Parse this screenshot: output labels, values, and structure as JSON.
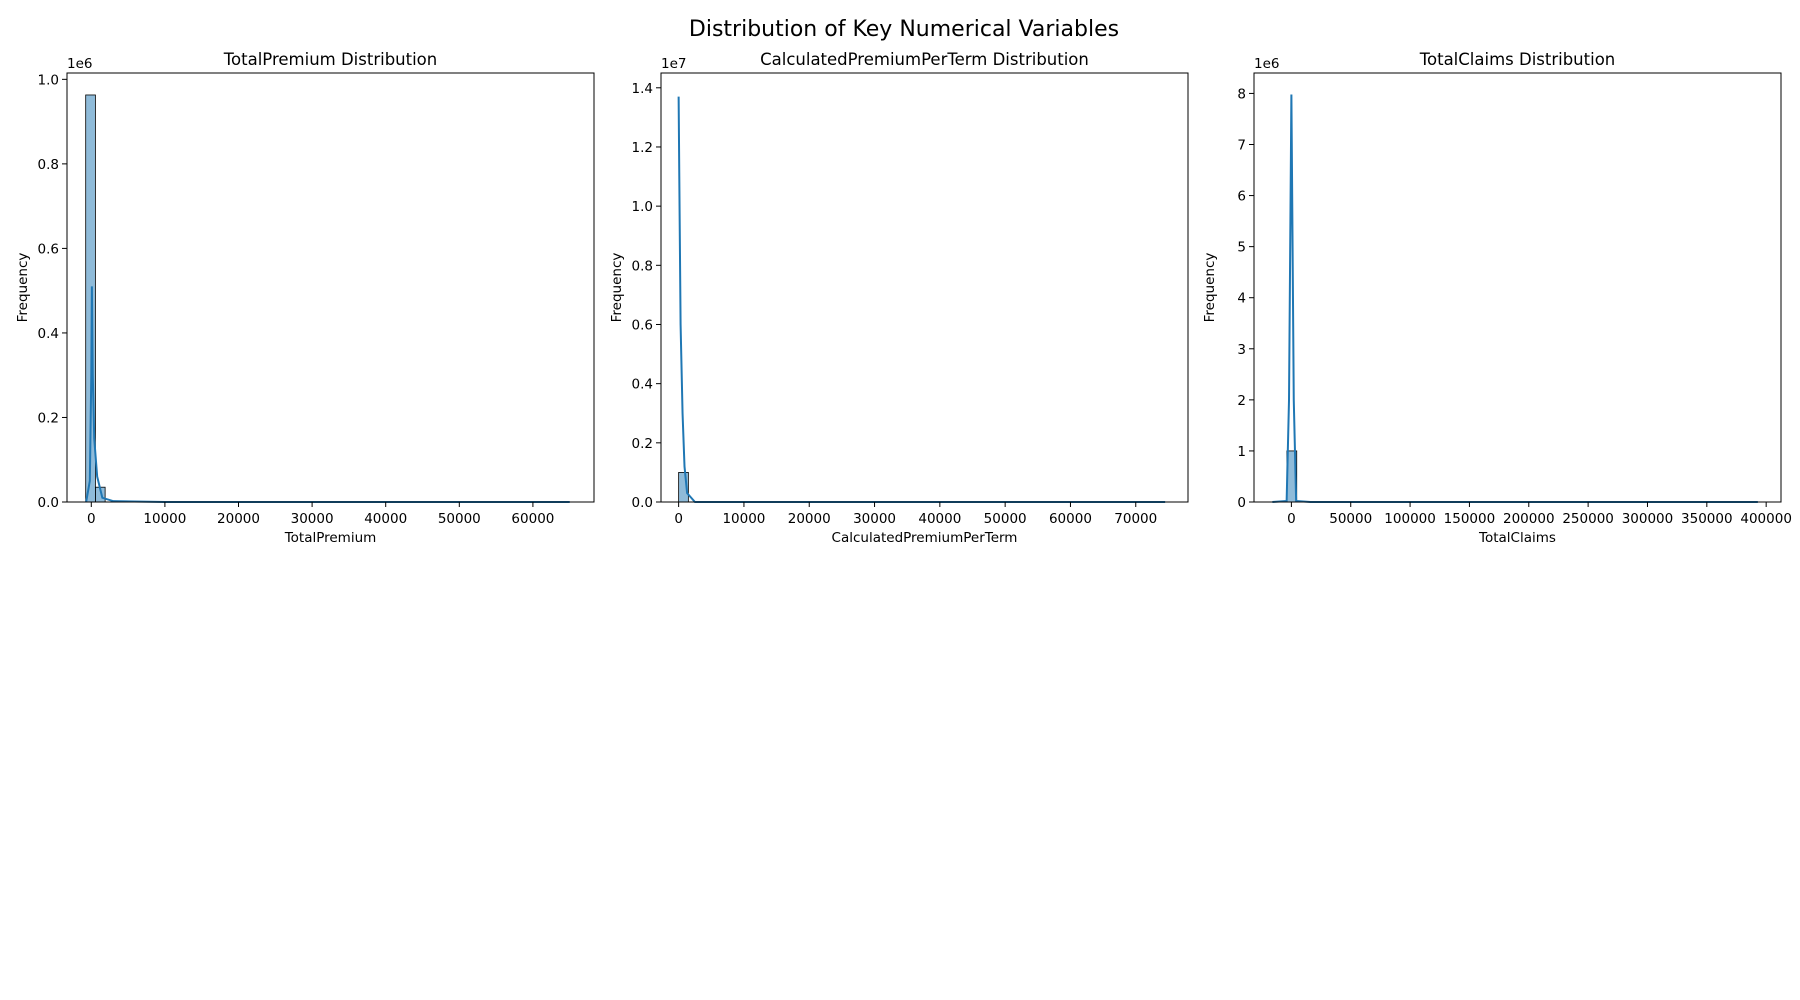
{
  "figure": {
    "title": "Distribution of Key Numerical Variables"
  },
  "colors": {
    "bar_fill": "#1f77b4",
    "bar_fill_opacity": 0.5,
    "bar_edge": "#000000",
    "kde_line": "#1f77b4",
    "axis": "#000000"
  },
  "chart_data": [
    {
      "type": "bar",
      "title": "TotalPremium Distribution",
      "xlabel": "TotalPremium",
      "ylabel": "Frequency",
      "offset_text": "1e6",
      "xlim": [
        -3300,
        68300
      ],
      "ylim": [
        0,
        1.015
      ],
      "xticks": [
        0,
        10000,
        20000,
        30000,
        40000,
        50000,
        60000
      ],
      "xtick_labels": [
        "0",
        "10000",
        "20000",
        "30000",
        "40000",
        "50000",
        "60000"
      ],
      "yticks": [
        0,
        0.2,
        0.4,
        0.6,
        0.8,
        1.0
      ],
      "ytick_labels": [
        "0.0",
        "0.2",
        "0.4",
        "0.6",
        "0.8",
        "1.0"
      ],
      "bins": [
        {
          "x0": -760,
          "x1": 560,
          "value": 0.963
        },
        {
          "x0": 560,
          "x1": 1880,
          "value": 0.035
        }
      ],
      "kde": [
        [
          -700,
          0.0
        ],
        [
          -200,
          0.05
        ],
        [
          0,
          0.3
        ],
        [
          80,
          0.51
        ],
        [
          200,
          0.3
        ],
        [
          400,
          0.15
        ],
        [
          800,
          0.06
        ],
        [
          1500,
          0.01
        ],
        [
          3000,
          0.002
        ],
        [
          10000,
          0.0
        ],
        [
          65000,
          0.0
        ]
      ]
    },
    {
      "type": "bar",
      "title": "CalculatedPremiumPerTerm Distribution",
      "xlabel": "CalculatedPremiumPerTerm",
      "ylabel": "Frequency",
      "offset_text": "1e7",
      "xlim": [
        -2700,
        78000
      ],
      "ylim": [
        0,
        1.45
      ],
      "xticks": [
        0,
        10000,
        20000,
        30000,
        40000,
        50000,
        60000,
        70000
      ],
      "xtick_labels": [
        "0",
        "10000",
        "20000",
        "30000",
        "40000",
        "50000",
        "60000",
        "70000"
      ],
      "yticks": [
        0,
        0.2,
        0.4,
        0.6,
        0.8,
        1.0,
        1.2,
        1.4
      ],
      "ytick_labels": [
        "0.0",
        "0.2",
        "0.4",
        "0.6",
        "0.8",
        "1.0",
        "1.2",
        "1.4"
      ],
      "bins": [
        {
          "x0": 0,
          "x1": 1490,
          "value": 0.1
        }
      ],
      "kde": [
        [
          0,
          1.37
        ],
        [
          100,
          1.1
        ],
        [
          300,
          0.6
        ],
        [
          600,
          0.3
        ],
        [
          900,
          0.12
        ],
        [
          1300,
          0.03
        ],
        [
          2500,
          0.0
        ],
        [
          74500,
          0.0
        ]
      ]
    },
    {
      "type": "bar",
      "title": "TotalClaims Distribution",
      "xlabel": "TotalClaims",
      "ylabel": "Frequency",
      "offset_text": "1e6",
      "xlim": [
        -31500,
        412500
      ],
      "ylim": [
        0,
        8.4
      ],
      "xticks": [
        0,
        50000,
        100000,
        150000,
        200000,
        250000,
        300000,
        350000,
        400000
      ],
      "xtick_labels": [
        "0",
        "50000",
        "100000",
        "150000",
        "200000",
        "250000",
        "300000",
        "350000",
        "400000"
      ],
      "yticks": [
        0,
        1,
        2,
        3,
        4,
        5,
        6,
        7,
        8
      ],
      "ytick_labels": [
        "0",
        "1",
        "2",
        "3",
        "4",
        "5",
        "6",
        "7",
        "8"
      ],
      "bins": [
        {
          "x0": -3800,
          "x1": 4500,
          "value": 1.0
        }
      ],
      "kde": [
        [
          -16000,
          0.0
        ],
        [
          -4000,
          0.02
        ],
        [
          -2000,
          2.0
        ],
        [
          0,
          7.98
        ],
        [
          2000,
          2.0
        ],
        [
          4000,
          0.02
        ],
        [
          16000,
          0.0
        ],
        [
          393000,
          0.0
        ]
      ]
    }
  ]
}
